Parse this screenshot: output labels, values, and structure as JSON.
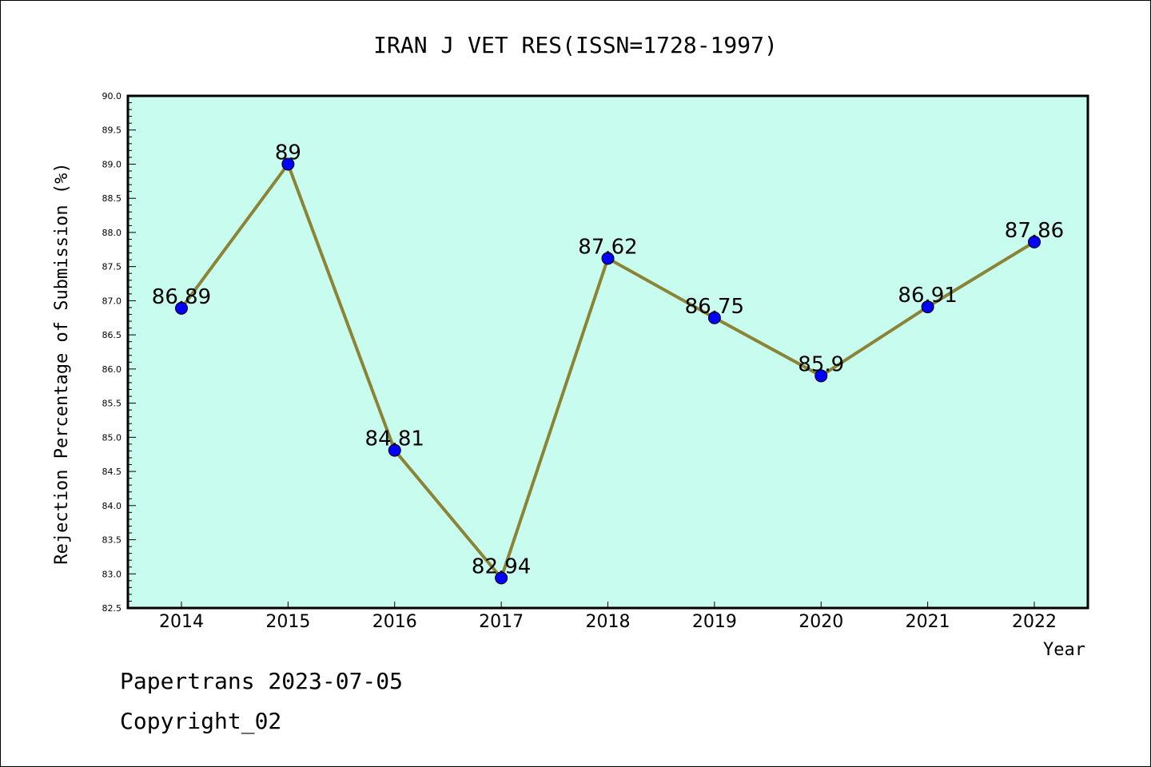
{
  "chart_data": {
    "type": "line",
    "title": "IRAN J VET RES(ISSN=1728-1997)",
    "xlabel": "Year",
    "ylabel": "Rejection Percentage of Submission (%)",
    "categories": [
      "2014",
      "2015",
      "2016",
      "2017",
      "2018",
      "2019",
      "2020",
      "2021",
      "2022"
    ],
    "values": [
      86.89,
      89,
      84.81,
      82.94,
      87.62,
      86.75,
      85.9,
      86.91,
      87.86
    ],
    "data_labels": [
      "86.89",
      "89",
      "84.81",
      "82.94",
      "87.62",
      "86.75",
      "85.9",
      "86.91",
      "87.86"
    ],
    "ylim": [
      82.5,
      90.0
    ],
    "yticks": [
      "82.5",
      "83.0",
      "83.5",
      "84.0",
      "84.5",
      "85.0",
      "85.5",
      "86.0",
      "86.5",
      "87.0",
      "87.5",
      "88.0",
      "88.5",
      "89.0",
      "89.5",
      "90.0"
    ],
    "grid": false,
    "legend": "none",
    "colors": {
      "plot_background": "#c8fcee",
      "line": "#8b8437",
      "marker": "#0000ff"
    }
  },
  "footer": {
    "line1": "Papertrans 2023-07-05",
    "line2": "Copyright_02"
  }
}
